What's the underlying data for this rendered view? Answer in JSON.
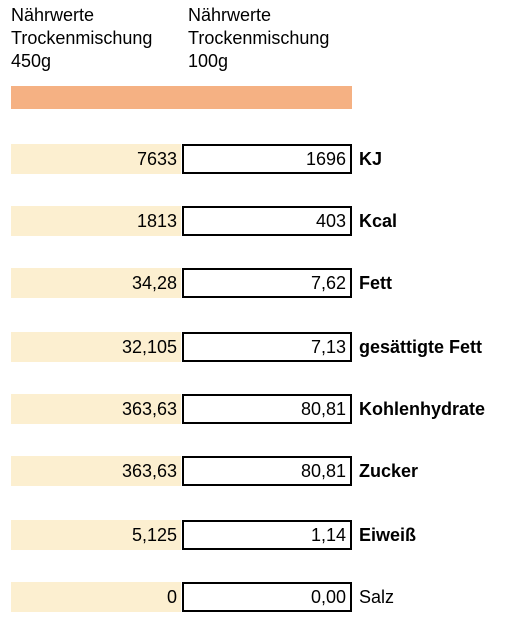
{
  "headers": {
    "col_450": [
      "Nährwerte",
      "Trockenmischung",
      "450g"
    ],
    "col_100": [
      "Nährwerte",
      "Trockenmischung",
      "100g"
    ]
  },
  "colors": {
    "orange_bar": "#f5b183",
    "cell_450_bg": "#fcefd0"
  },
  "rows": [
    {
      "val_450": "7633",
      "val_100": "1696",
      "label": "KJ",
      "bold": true
    },
    {
      "val_450": "1813",
      "val_100": "403",
      "label": "Kcal",
      "bold": true
    },
    {
      "val_450": "34,28",
      "val_100": "7,62",
      "label": "Fett",
      "bold": true
    },
    {
      "val_450": "32,105",
      "val_100": "7,13",
      "label": "gesättigte Fett",
      "bold": true
    },
    {
      "val_450": "363,63",
      "val_100": "80,81",
      "label": "Kohlenhydrate",
      "bold": true
    },
    {
      "val_450": "363,63",
      "val_100": "80,81",
      "label": "Zucker",
      "bold": true
    },
    {
      "val_450": "5,125",
      "val_100": "1,14",
      "label": "Eiweiß",
      "bold": true
    },
    {
      "val_450": "0",
      "val_100": "0,00",
      "label": "Salz",
      "bold": false
    }
  ]
}
